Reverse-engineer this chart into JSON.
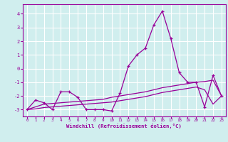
{
  "x": [
    0,
    1,
    2,
    3,
    4,
    5,
    6,
    7,
    8,
    9,
    10,
    11,
    12,
    13,
    14,
    15,
    16,
    17,
    18,
    19,
    20,
    21,
    22,
    23
  ],
  "y_main": [
    -3.0,
    -2.3,
    -2.5,
    -3.0,
    -1.7,
    -1.7,
    -2.1,
    -3.0,
    -3.0,
    -3.0,
    -3.1,
    -1.8,
    0.2,
    1.0,
    1.5,
    3.2,
    4.2,
    2.2,
    -0.3,
    -1.0,
    -1.0,
    -2.8,
    -0.5,
    -2.0
  ],
  "y_line1": [
    -3.0,
    -2.8,
    -2.6,
    -2.55,
    -2.5,
    -2.45,
    -2.4,
    -2.35,
    -2.3,
    -2.25,
    -2.1,
    -2.0,
    -1.9,
    -1.8,
    -1.7,
    -1.55,
    -1.4,
    -1.3,
    -1.2,
    -1.1,
    -1.0,
    -0.95,
    -0.85,
    -2.0
  ],
  "y_line2": [
    -3.0,
    -2.95,
    -2.85,
    -2.8,
    -2.75,
    -2.7,
    -2.65,
    -2.6,
    -2.55,
    -2.5,
    -2.45,
    -2.35,
    -2.25,
    -2.15,
    -2.05,
    -1.9,
    -1.75,
    -1.65,
    -1.55,
    -1.45,
    -1.35,
    -1.55,
    -2.6,
    -2.0
  ],
  "line_color": "#990099",
  "bg_color": "#d0eeee",
  "grid_color": "#ffffff",
  "xlabel": "Windchill (Refroidissement éolien,°C)",
  "ylim": [
    -3.5,
    4.7
  ],
  "xlim": [
    -0.5,
    23.5
  ],
  "yticks": [
    -3,
    -2,
    -1,
    0,
    1,
    2,
    3,
    4
  ],
  "xticks": [
    0,
    1,
    2,
    3,
    4,
    5,
    6,
    7,
    8,
    9,
    10,
    11,
    12,
    13,
    14,
    15,
    16,
    17,
    18,
    19,
    20,
    21,
    22,
    23
  ],
  "tick_fontsize": 4.2,
  "ytick_fontsize": 5.0,
  "xlabel_fontsize": 5.2
}
